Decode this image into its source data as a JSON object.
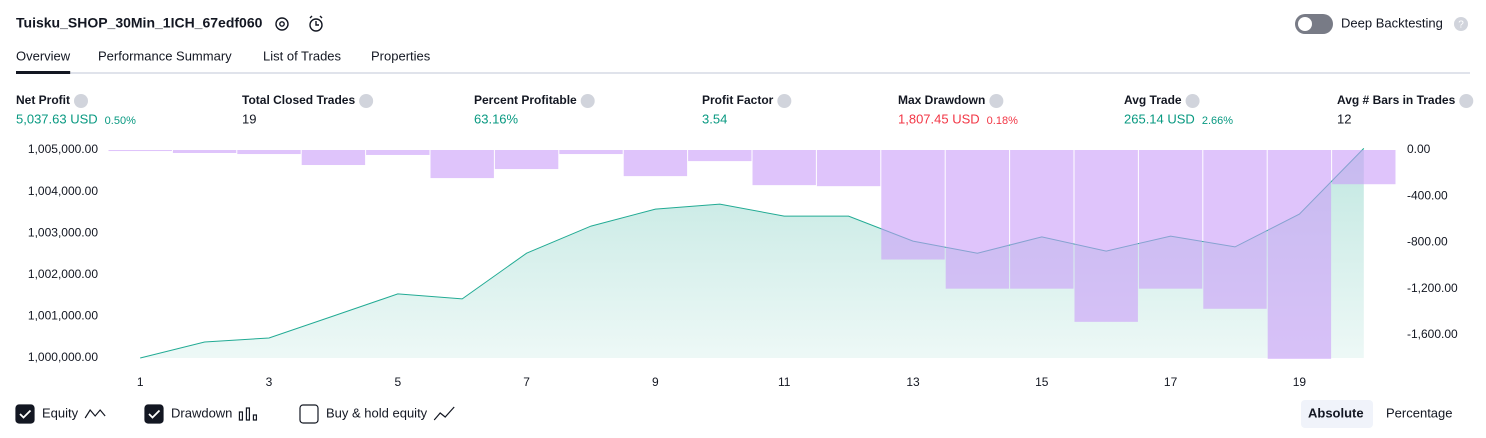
{
  "header": {
    "title": "Tuisku_SHOP_30Min_1ICH_67edf060",
    "toggle_label": "Deep Backtesting",
    "toggle_on": false
  },
  "tabs": [
    "Overview",
    "Performance Summary",
    "List of Trades",
    "Properties"
  ],
  "active_tab": 0,
  "metrics": [
    {
      "label": "Net Profit",
      "value": "5,037.63 USD",
      "percent": "0.50%",
      "color": "#089981"
    },
    {
      "label": "Total Closed Trades",
      "value": "19",
      "color": "#131722"
    },
    {
      "label": "Percent Profitable",
      "value": "63.16%",
      "color": "#089981"
    },
    {
      "label": "Profit Factor",
      "value": "3.54",
      "color": "#089981"
    },
    {
      "label": "Max Drawdown",
      "value": "1,807.45 USD",
      "percent": "0.18%",
      "color": "#f23645"
    },
    {
      "label": "Avg Trade",
      "value": "265.14 USD",
      "percent": "2.66%",
      "color": "#089981"
    },
    {
      "label": "Avg # Bars in Trades",
      "value": "12",
      "color": "#131722"
    }
  ],
  "chart_data": {
    "type": "line",
    "x": [
      1,
      2,
      3,
      4,
      5,
      6,
      7,
      8,
      9,
      10,
      11,
      12,
      13,
      14,
      15,
      16,
      17,
      18,
      19,
      20
    ],
    "xlim": [
      0.5,
      20.5
    ],
    "xticks": [
      1,
      3,
      5,
      7,
      9,
      11,
      13,
      15,
      17,
      19
    ],
    "ylim": [
      1000000,
      1005000
    ],
    "yticks": [
      {
        "value": 1000000,
        "label": "1,000,000.00"
      },
      {
        "value": 1001000,
        "label": "1,001,000.00"
      },
      {
        "value": 1002000,
        "label": "1,002,000.00"
      },
      {
        "value": 1003000,
        "label": "1,003,000.00"
      },
      {
        "value": 1004000,
        "label": "1,004,000.00"
      },
      {
        "value": 1005000,
        "label": "1,005,000.00"
      }
    ],
    "y2lim": [
      -1800,
      0
    ],
    "y2ticks": [
      {
        "value": 0,
        "label": "0.00"
      },
      {
        "value": -400,
        "label": "-400.00"
      },
      {
        "value": -800,
        "label": "-800.00"
      },
      {
        "value": -1200,
        "label": "-1,200.00"
      },
      {
        "value": -1600,
        "label": "-1,600.00"
      }
    ],
    "series": [
      {
        "name": "Equity",
        "type": "area",
        "color": "#22ab94",
        "values": [
          1000000,
          1000385,
          1000480,
          1001010,
          1001540,
          1001420,
          1002520,
          1003170,
          1003580,
          1003700,
          1003410,
          1003410,
          1002810,
          1002520,
          1002910,
          1002570,
          1002930,
          1002670,
          1003460,
          1005037.63
        ]
      },
      {
        "name": "Drawdown",
        "type": "bar",
        "axis": "y2",
        "color": "#c99cf8",
        "values": [
          -9,
          -26,
          -35,
          -130,
          -43,
          -243,
          -165,
          -35,
          -226,
          -96,
          -304,
          -313,
          -948,
          -1200,
          -1200,
          -1487,
          -1200,
          -1374,
          -1807.45,
          -296
        ]
      }
    ]
  },
  "legend_toggles": [
    {
      "label": "Equity",
      "checked": true
    },
    {
      "label": "Drawdown",
      "checked": true
    },
    {
      "label": "Buy & hold equity",
      "checked": false
    }
  ],
  "scale_buttons": [
    "Absolute",
    "Percentage"
  ],
  "active_scale": 0
}
